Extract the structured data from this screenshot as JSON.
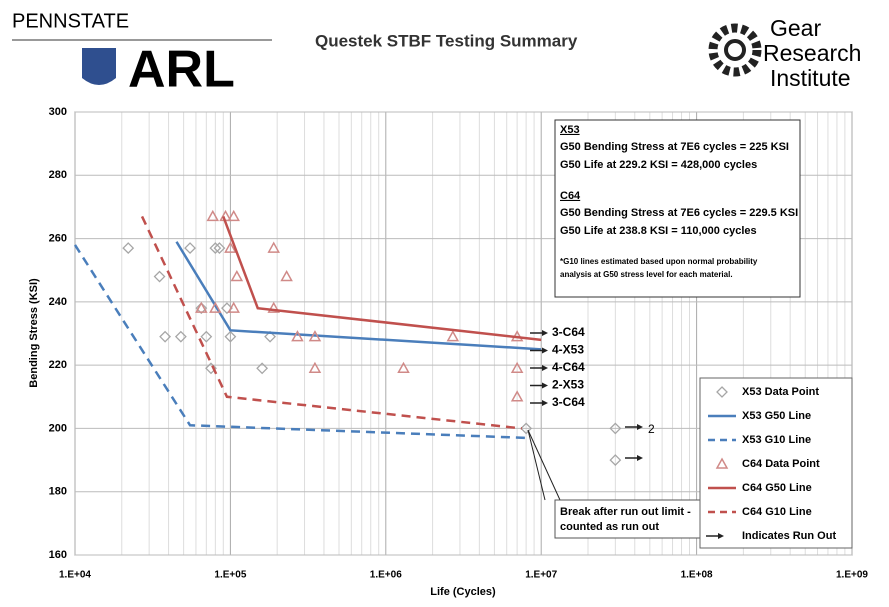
{
  "header": {
    "left_top": "PENNSTATE",
    "left_big": "ARL",
    "right": [
      "Gear",
      "Research",
      "Institute"
    ]
  },
  "chart_data": {
    "type": "scatter",
    "title": "Questek STBF Testing Summary",
    "x_label": "Life (Cycles)",
    "y_label": "Bending Stress (KSI)",
    "log_x": true,
    "grid": true,
    "xlim": [
      10000,
      1000000000
    ],
    "ylim": [
      160,
      300
    ],
    "xticks": [
      {
        "value": 10000,
        "label": "1.E+04"
      },
      {
        "value": 100000,
        "label": "1.E+05"
      },
      {
        "value": 1000000,
        "label": "1.E+06"
      },
      {
        "value": 10000000,
        "label": "1.E+07"
      },
      {
        "value": 100000000,
        "label": "1.E+08"
      },
      {
        "value": 1000000000,
        "label": "1.E+09"
      }
    ],
    "yticks": [
      160,
      180,
      200,
      220,
      240,
      260,
      280,
      300
    ],
    "series": [
      {
        "name": "X53 Data Point",
        "kind": "diamond",
        "color": "#a6a6a6",
        "x": [
          22000,
          35000,
          38000,
          48000,
          55000,
          65000,
          70000,
          75000,
          80000,
          85000,
          95000,
          100000,
          160000,
          180000,
          8000000,
          30000000,
          30000000
        ],
        "values": [
          257,
          248,
          229,
          229,
          257,
          238,
          229,
          219,
          257,
          257,
          238,
          229,
          219,
          229,
          200,
          200,
          190
        ]
      },
      {
        "name": "X53 G50 Line",
        "kind": "line",
        "color": "#4a7ebb",
        "x": [
          45000,
          100000,
          10000000
        ],
        "values": [
          259,
          231,
          225
        ]
      },
      {
        "name": "X53 G10 Line",
        "kind": "dash",
        "color": "#4a7ebb",
        "x": [
          10000,
          55000,
          8000000
        ],
        "values": [
          258,
          201,
          197
        ]
      },
      {
        "name": "C64 Data Point",
        "kind": "triangle",
        "color": "#d08a88",
        "x": [
          77000,
          93000,
          105000,
          65000,
          80000,
          100000,
          110000,
          105000,
          190000,
          230000,
          190000,
          270000,
          350000,
          350000,
          1300000,
          2700000,
          7000000,
          7000000,
          7000000
        ],
        "values": [
          267,
          267,
          267,
          238,
          238,
          257,
          248,
          238,
          257,
          248,
          238,
          229,
          229,
          219,
          219,
          229,
          229,
          219,
          210
        ]
      },
      {
        "name": "C64 G50 Line",
        "kind": "line",
        "color": "#c0504d",
        "x": [
          90000,
          150000,
          10000000
        ],
        "values": [
          267,
          238,
          228
        ]
      },
      {
        "name": "C64 G10 Line",
        "kind": "dash",
        "color": "#c0504d",
        "x": [
          27000,
          95000,
          7500000
        ],
        "values": [
          267,
          210,
          200
        ]
      }
    ],
    "legend_extra": "Indicates Run Out",
    "runout_labels": [
      "3-C64",
      "4-X53",
      "4-C64",
      "2-X53",
      "3-C64"
    ],
    "runout_count": "2",
    "break_note": [
      "Break after run out limit -",
      "counted as run out"
    ],
    "info": [
      "X53",
      "G50 Bending Stress at 7E6 cycles = 225 KSI",
      "G50 Life at 229.2 KSI = 428,000 cycles",
      "C64",
      "G50 Bending Stress at 7E6 cycles = 229.5 KSI",
      "G50 Life at 238.8 KSI = 110,000 cycles",
      "*G10 lines estimated based upon normal probability",
      "analysis at G50 stress level for each material."
    ]
  }
}
